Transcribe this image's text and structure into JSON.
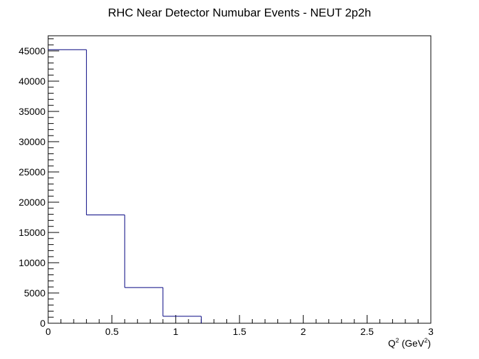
{
  "chart_data": {
    "type": "histogram",
    "title": "RHC Near Detector Numubar Events - NEUT 2p2h",
    "xlabel_main": "Q",
    "xlabel_sup1": "2",
    "xlabel_mid": " (GeV",
    "xlabel_sup2": "2",
    "xlabel_end": ")",
    "ylabel": "",
    "xlim": [
      0,
      3
    ],
    "ylim": [
      0,
      47500
    ],
    "x_ticks": [
      0,
      0.5,
      1,
      1.5,
      2,
      2.5,
      3
    ],
    "x_tick_labels": [
      "0",
      "0.5",
      "1",
      "1.5",
      "2",
      "2.5",
      "3"
    ],
    "y_ticks": [
      0,
      5000,
      10000,
      15000,
      20000,
      25000,
      30000,
      35000,
      40000,
      45000
    ],
    "y_tick_labels": [
      "0",
      "5000",
      "10000",
      "15000",
      "20000",
      "25000",
      "30000",
      "35000",
      "40000",
      "45000"
    ],
    "bin_edges": [
      0,
      0.3,
      0.6,
      0.9,
      1.2
    ],
    "values": [
      45200,
      17900,
      5900,
      1150
    ],
    "line_color": "#00007f",
    "grid": false
  }
}
